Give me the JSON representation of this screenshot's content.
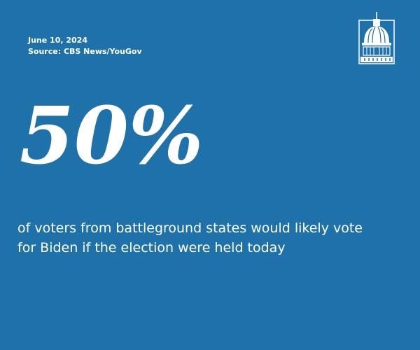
{
  "header": {
    "date": "June 10, 2024",
    "source": "Source: CBS News/YouGov"
  },
  "stat": "50%",
  "description": [
    "of voters from battleground states would likely vote",
    "for Biden if the election were held today"
  ]
}
